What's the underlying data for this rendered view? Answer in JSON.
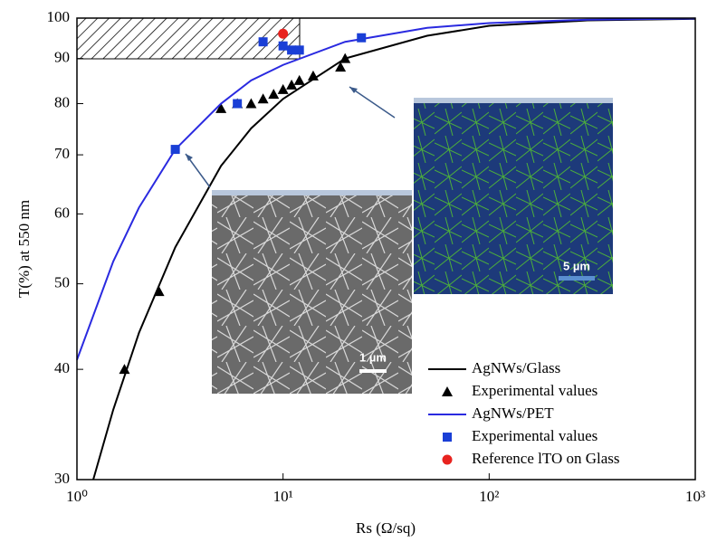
{
  "chart_data": {
    "type": "line",
    "xlabel": "Rs (Ω/sq)",
    "ylabel": "T(%) at 550 nm",
    "xscale": "log",
    "yscale": "log",
    "xlim": [
      1,
      1000
    ],
    "ylim": [
      30,
      100
    ],
    "xticks": [
      {
        "value": 1,
        "label": "10⁰"
      },
      {
        "value": 10,
        "label": "10¹"
      },
      {
        "value": 100,
        "label": "10²"
      },
      {
        "value": 1000,
        "label": "10³"
      }
    ],
    "yticks": [
      30,
      40,
      50,
      60,
      70,
      80,
      90,
      100
    ],
    "series": [
      {
        "name": "AgNWs/Glass",
        "kind": "line",
        "color": "#000000",
        "x": [
          1.2,
          1.5,
          2,
          3,
          5,
          7,
          10,
          20,
          50,
          100,
          300,
          1000
        ],
        "values": [
          30,
          36,
          44,
          55,
          68,
          75,
          81,
          90,
          95.5,
          98,
          99.4,
          99.8
        ]
      },
      {
        "name": "Experimental values",
        "kind": "triangle",
        "color": "#000000",
        "x": [
          1.7,
          2.5,
          5,
          6,
          7,
          8,
          9,
          10,
          11,
          12,
          14,
          19,
          20
        ],
        "values": [
          40,
          49,
          79,
          80,
          80,
          81,
          82,
          83,
          84,
          85,
          86,
          88,
          90
        ]
      },
      {
        "name": "AgNWs/PET",
        "kind": "line",
        "color": "#2a2ae0",
        "x": [
          1,
          1.5,
          2,
          3,
          5,
          7,
          10,
          20,
          50,
          100,
          300,
          1000
        ],
        "values": [
          41,
          53,
          61,
          71,
          80,
          85,
          88.5,
          94,
          97.5,
          98.7,
          99.6,
          99.9
        ]
      },
      {
        "name": "Experimental values",
        "kind": "square",
        "color": "#1a3fd6",
        "x": [
          3,
          6,
          8,
          10,
          11,
          12,
          24
        ],
        "values": [
          71,
          80,
          94,
          93,
          92,
          92,
          95
        ]
      },
      {
        "name": "Reference lTO on Glass",
        "kind": "circle",
        "color": "#e8231f",
        "x": [
          10
        ],
        "values": [
          96
        ]
      }
    ],
    "inset_labels": [
      "1 µm",
      "5 µm"
    ]
  }
}
